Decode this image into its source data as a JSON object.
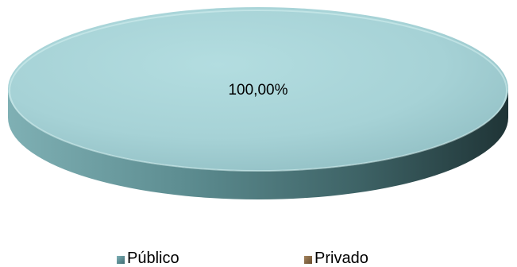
{
  "chart_data": {
    "type": "pie",
    "style": "3d",
    "categories": [
      "Público",
      "Privado"
    ],
    "values": [
      100,
      0
    ],
    "data_labels": [
      "100,00%",
      ""
    ],
    "colors": [
      "#7fb2b8",
      "#a4845e"
    ],
    "title": "",
    "legend": "bottom"
  }
}
